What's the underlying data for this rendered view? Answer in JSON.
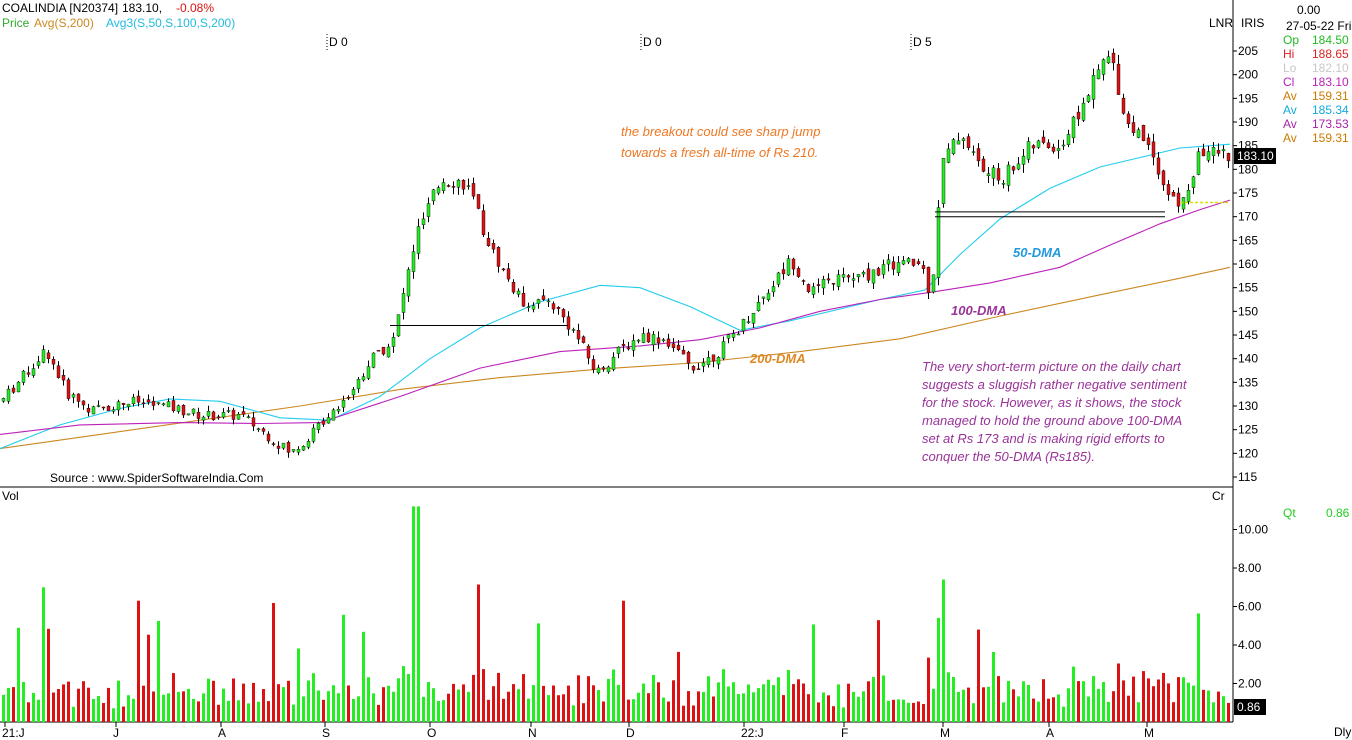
{
  "header": {
    "symbol": "COALINDIA [N20374]",
    "last": "183.10,",
    "change": "-0.08%",
    "legend_price": "Price",
    "legend_avg": "Avg(S,200)",
    "legend_avg3": "Avg3(S,50,S,100,S,200)"
  },
  "top_right": {
    "lnr": "LNR",
    "iris": "IRIS",
    "value": "0.00",
    "date": "27-05-22 Fri"
  },
  "ohlc": [
    {
      "label": "Op",
      "value": "184.50",
      "color": "#22bb22"
    },
    {
      "label": "Hi",
      "value": "188.65",
      "color": "#dd2222"
    },
    {
      "label": "Lo",
      "value": "182.10",
      "color": "#c8c8c8"
    },
    {
      "label": "Cl",
      "value": "183.10",
      "color": "#bb22bb"
    },
    {
      "label": "Av",
      "value": "159.31",
      "color": "#cc7a00"
    },
    {
      "label": "Av",
      "value": "185.34",
      "color": "#11aadd"
    },
    {
      "label": "Av",
      "value": "173.53",
      "color": "#aa22aa"
    },
    {
      "label": "Av",
      "value": "159.31",
      "color": "#cc7a00"
    }
  ],
  "markers": [
    "D 0",
    "D 0",
    "D 5"
  ],
  "price_tag": "183.10",
  "vol_tag": "0.86",
  "vol_panel": {
    "label": "Vol",
    "cr": "Cr",
    "qt_label": "Qt",
    "qt_value": "0.86"
  },
  "annotations": {
    "breakout_line1": "the breakout could see sharp jump",
    "breakout_line2": "towards a fresh all-time of Rs 210.",
    "dma50": "50-DMA",
    "dma100": "100-DMA",
    "dma200": "200-DMA",
    "note_lines": [
      "The very short-term picture on the daily chart",
      "suggests a sluggish rather negative sentiment",
      "for the stock. However, as it shows, the stock",
      "managed to hold the ground above 100-DMA",
      "set at Rs 173 and is making rigid efforts to",
      "conquer the 50-DMA (Rs185)."
    ],
    "source": "Source : www.SpiderSoftwareIndia.Com"
  },
  "footer": {
    "dly": "Dly"
  },
  "colors": {
    "up": "#22ee22",
    "down": "#dd1111",
    "ma50": "#22ccee",
    "ma100": "#bb22bb",
    "ma200": "#cc8822",
    "breakout_text": "#ee7722",
    "note_text": "#993399",
    "dma50_text": "#2299dd",
    "dma100_text": "#993399",
    "dma200_text": "#dd8822"
  },
  "chart_data": [
    {
      "type": "candlestick",
      "title": "COALINDIA [N20374]",
      "y_ticks": [
        115,
        120,
        125,
        130,
        135,
        140,
        145,
        150,
        155,
        160,
        165,
        170,
        175,
        180,
        185,
        190,
        195,
        200,
        205
      ],
      "ylim": [
        112,
        210
      ],
      "x_month_labels": [
        "21:J",
        "J",
        "A",
        "S",
        "O",
        "N",
        "D",
        "22:J",
        "F",
        "M",
        "A",
        "M"
      ],
      "series": [
        {
          "name": "Avg(S,200)",
          "key": "ma200",
          "points": [
            [
              0,
              121
            ],
            [
              100,
              124
            ],
            [
              200,
              127
            ],
            [
              300,
              130
            ],
            [
              400,
              133.5
            ],
            [
              500,
              136
            ],
            [
              600,
              137.8
            ],
            [
              700,
              139.2
            ],
            [
              800,
              141.5
            ],
            [
              900,
              144.2
            ],
            [
              1000,
              149
            ],
            [
              1100,
              153.5
            ],
            [
              1180,
              157
            ],
            [
              1230,
              159.3
            ]
          ]
        },
        {
          "name": "Avg3 S,50",
          "key": "ma50",
          "points": [
            [
              0,
              121
            ],
            [
              60,
              126
            ],
            [
              120,
              129.5
            ],
            [
              170,
              131.5
            ],
            [
              220,
              131
            ],
            [
              280,
              127.5
            ],
            [
              330,
              127
            ],
            [
              380,
              132
            ],
            [
              430,
              140
            ],
            [
              480,
              146.5
            ],
            [
              540,
              152
            ],
            [
              600,
              155.5
            ],
            [
              640,
              155
            ],
            [
              690,
              151
            ],
            [
              740,
              146
            ],
            [
              790,
              148
            ],
            [
              840,
              150.5
            ],
            [
              880,
              152.5
            ],
            [
              925,
              154.5
            ],
            [
              960,
              162
            ],
            [
              1000,
              169.5
            ],
            [
              1050,
              176
            ],
            [
              1100,
              180.5
            ],
            [
              1140,
              182.5
            ],
            [
              1180,
              184.5
            ],
            [
              1230,
              185.3
            ]
          ]
        },
        {
          "name": "Avg3 S,100",
          "key": "ma100",
          "points": [
            [
              0,
              124
            ],
            [
              80,
              126
            ],
            [
              180,
              126.5
            ],
            [
              260,
              126.3
            ],
            [
              320,
              126.5
            ],
            [
              400,
              132
            ],
            [
              480,
              138
            ],
            [
              560,
              141.5
            ],
            [
              640,
              142.7
            ],
            [
              700,
              144
            ],
            [
              760,
              146.5
            ],
            [
              820,
              150
            ],
            [
              880,
              152.5
            ],
            [
              930,
              154
            ],
            [
              990,
              156
            ],
            [
              1060,
              159.3
            ],
            [
              1110,
              164
            ],
            [
              1160,
              168.5
            ],
            [
              1200,
              171.5
            ],
            [
              1230,
              173.5
            ]
          ]
        }
      ],
      "support_lines": [
        {
          "x1": 390,
          "x2": 568,
          "y": 147
        },
        {
          "x1": 935,
          "x2": 1165,
          "y": 171
        },
        {
          "x1": 935,
          "x2": 1165,
          "y": 170
        },
        {
          "x1": 1180,
          "x2": 1230,
          "y": 173
        }
      ]
    },
    {
      "type": "bar",
      "title": "Vol",
      "y_ticks": [
        2,
        4,
        6,
        8,
        10
      ],
      "ylim": [
        0,
        11.6
      ]
    }
  ]
}
